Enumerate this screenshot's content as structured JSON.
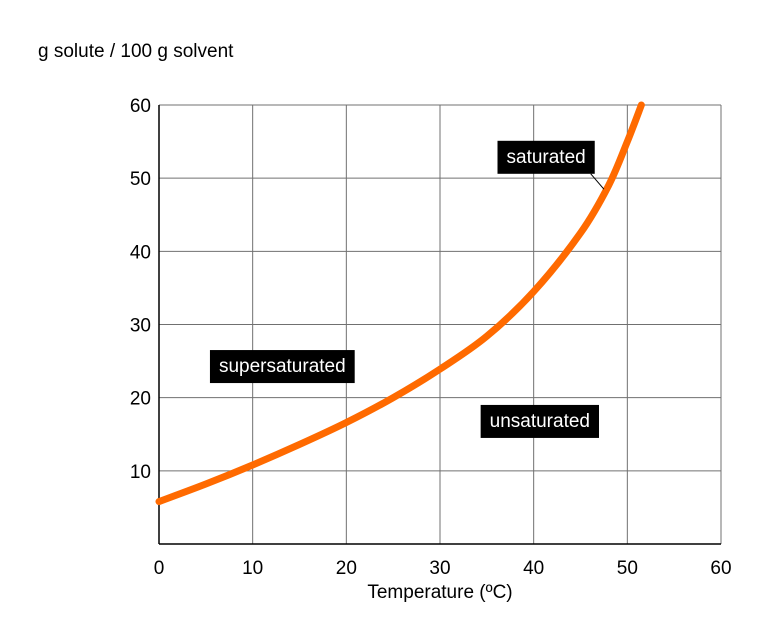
{
  "chart_data": {
    "type": "line",
    "title": "",
    "ylabel": "g solute / 100 g solvent",
    "xlabel": "Temperature (ºC)",
    "xlim": [
      0,
      60
    ],
    "ylim": [
      0,
      60
    ],
    "x_ticks": [
      0,
      10,
      20,
      30,
      40,
      50,
      60
    ],
    "y_ticks": [
      10,
      20,
      30,
      40,
      50,
      60
    ],
    "grid": true,
    "colors": {
      "curve": "#ff6a00",
      "grid": "#707070",
      "label_bg": "#000000",
      "label_text": "#ffffff"
    },
    "series": [
      {
        "x": [
          0,
          5,
          10,
          15,
          20,
          25,
          30,
          35,
          40,
          45,
          48,
          50,
          51.5
        ],
        "y": [
          5.8,
          8.2,
          10.8,
          13.6,
          16.6,
          20.0,
          23.9,
          28.4,
          34.5,
          42.5,
          49.0,
          55.0,
          60.0
        ]
      }
    ],
    "annotations": [
      {
        "text": "saturated",
        "x": 37.1,
        "y": 52.1,
        "pointer_to": {
          "x": 47.5,
          "y": 48.5
        }
      },
      {
        "text": "supersaturated",
        "x": 6.4,
        "y": 23.5
      },
      {
        "text": "unsaturated",
        "x": 35.3,
        "y": 16.0
      }
    ]
  }
}
